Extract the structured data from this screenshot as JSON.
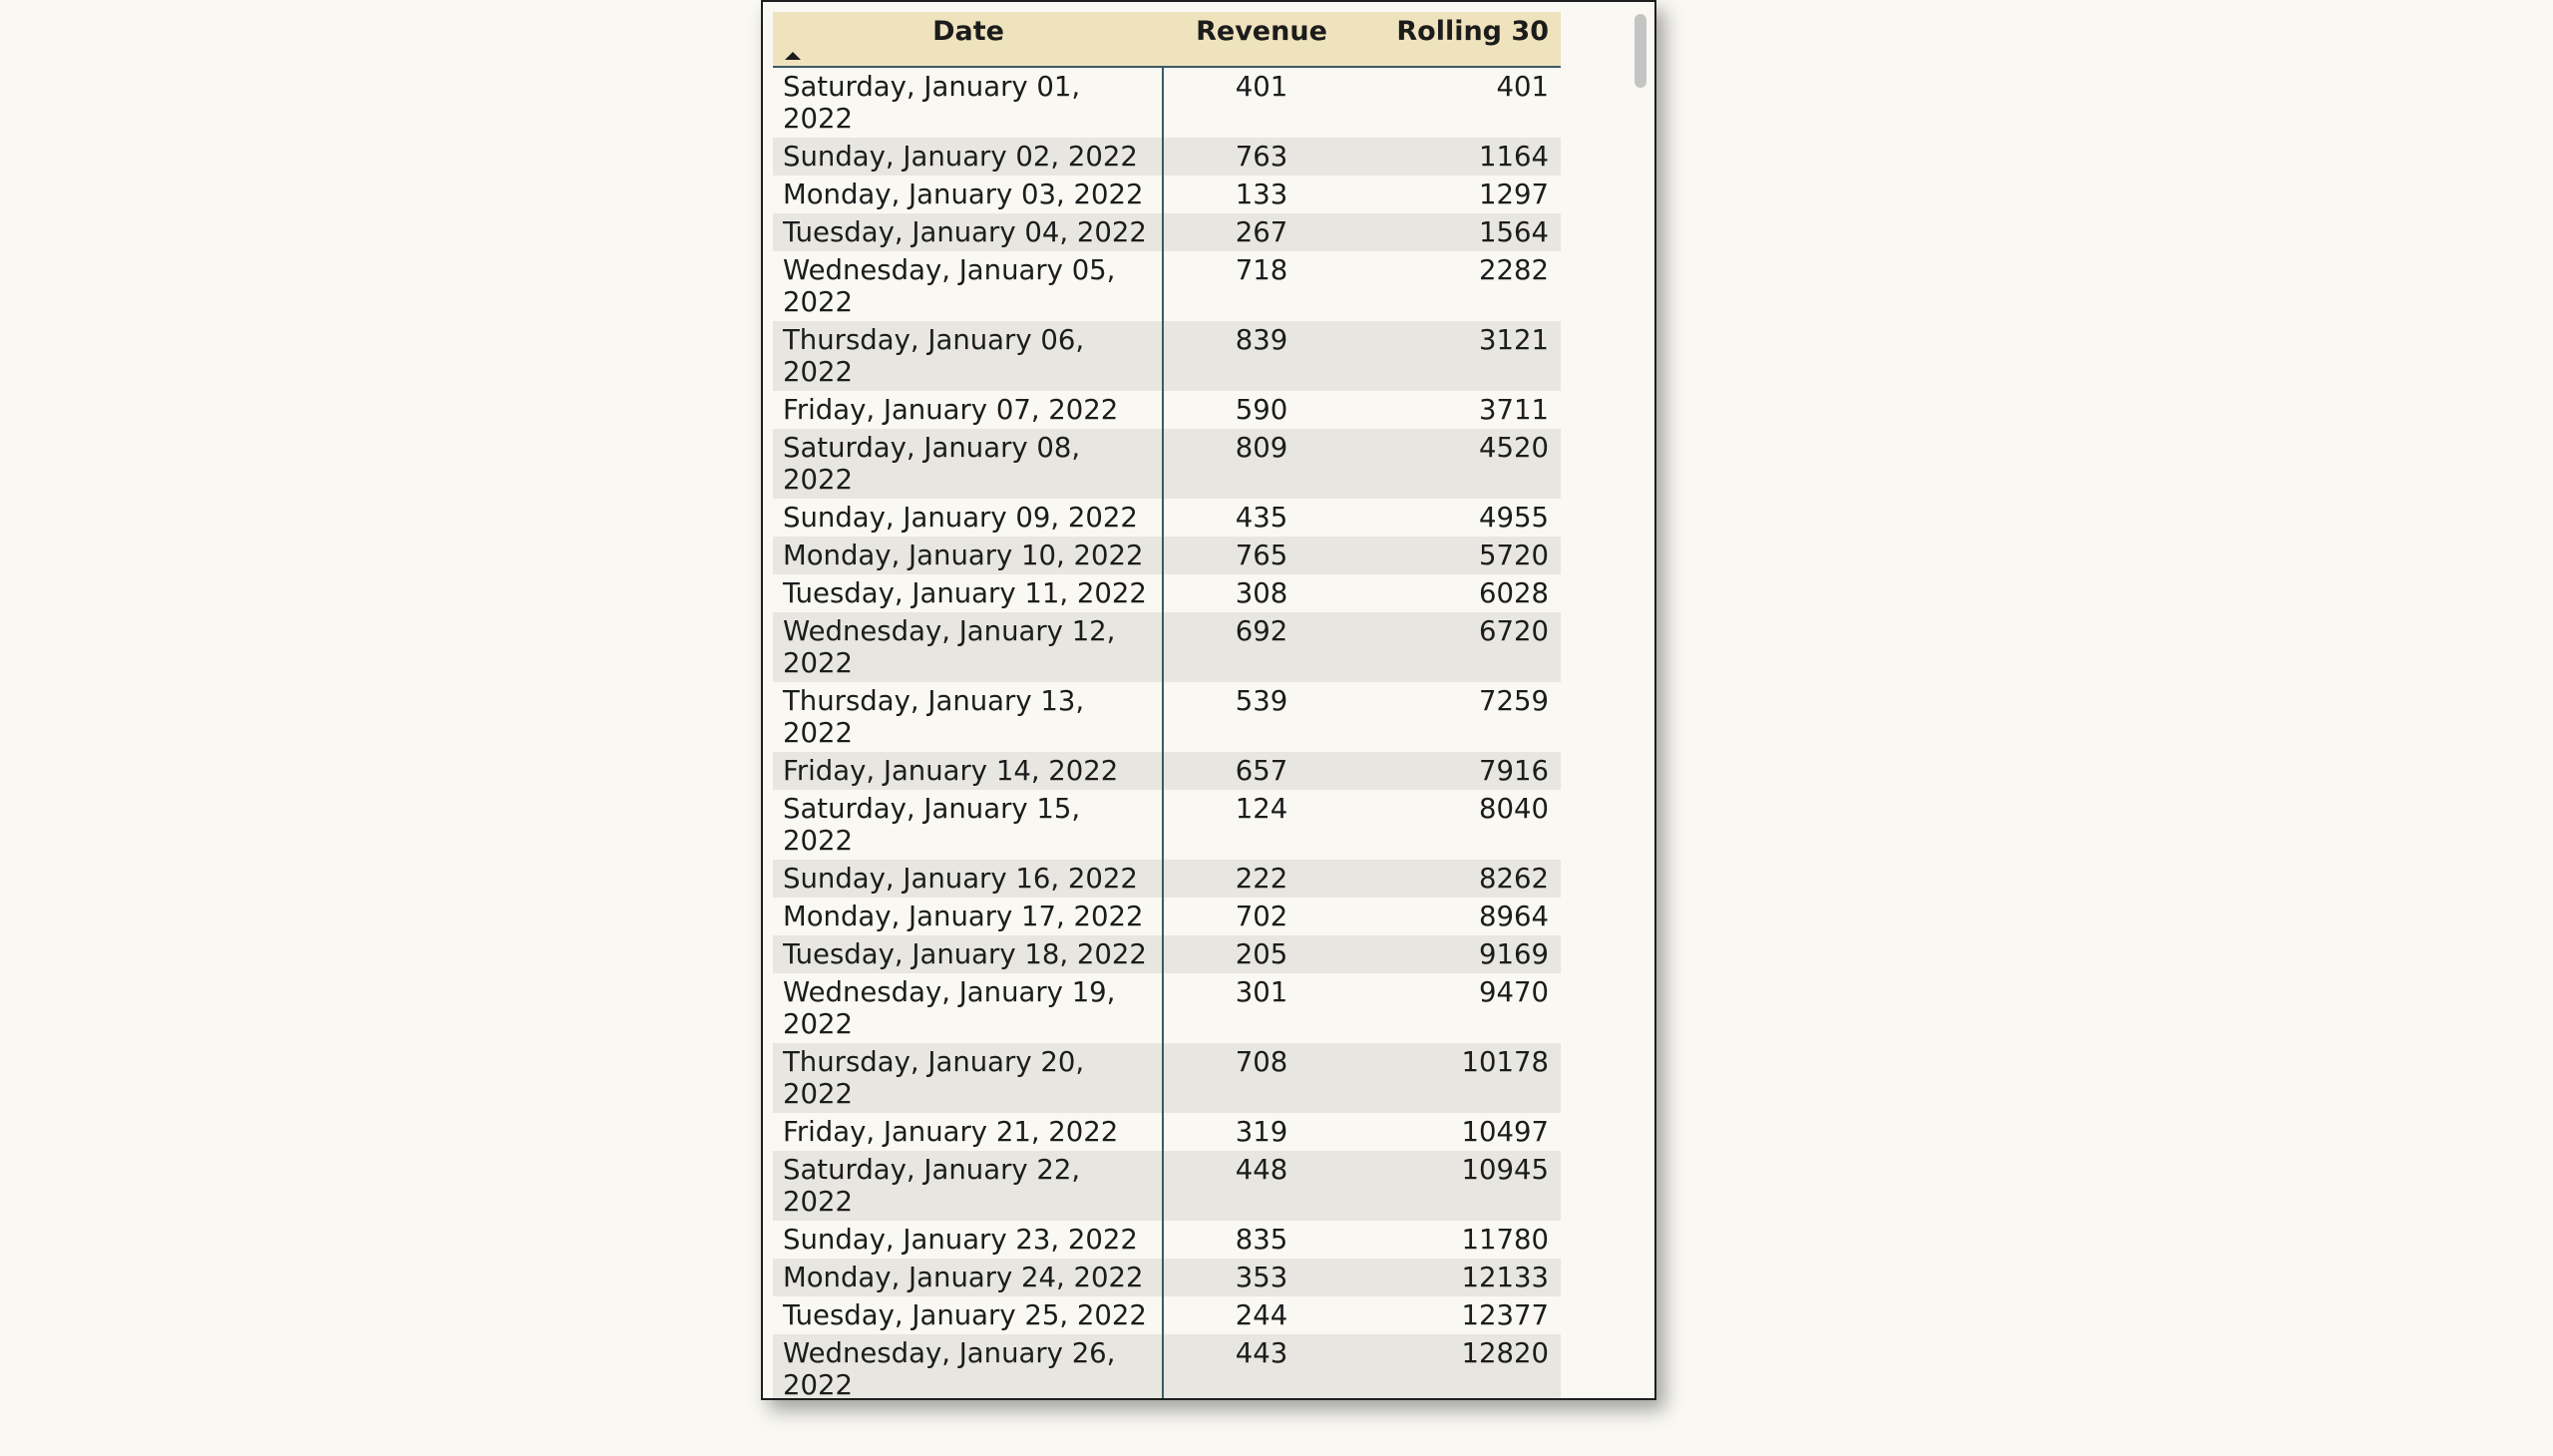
{
  "table": {
    "headers": {
      "date": "Date",
      "revenue": "Revenue",
      "rolling": "Rolling 30"
    },
    "sort_indicator": "ascending",
    "rows": [
      {
        "date": "Saturday, January 01, 2022",
        "revenue": "401",
        "rolling": "401"
      },
      {
        "date": "Sunday, January 02, 2022",
        "revenue": "763",
        "rolling": "1164"
      },
      {
        "date": "Monday, January 03, 2022",
        "revenue": "133",
        "rolling": "1297"
      },
      {
        "date": "Tuesday, January 04, 2022",
        "revenue": "267",
        "rolling": "1564"
      },
      {
        "date": "Wednesday, January 05, 2022",
        "revenue": "718",
        "rolling": "2282"
      },
      {
        "date": "Thursday, January 06, 2022",
        "revenue": "839",
        "rolling": "3121"
      },
      {
        "date": "Friday, January 07, 2022",
        "revenue": "590",
        "rolling": "3711"
      },
      {
        "date": "Saturday, January 08, 2022",
        "revenue": "809",
        "rolling": "4520"
      },
      {
        "date": "Sunday, January 09, 2022",
        "revenue": "435",
        "rolling": "4955"
      },
      {
        "date": "Monday, January 10, 2022",
        "revenue": "765",
        "rolling": "5720"
      },
      {
        "date": "Tuesday, January 11, 2022",
        "revenue": "308",
        "rolling": "6028"
      },
      {
        "date": "Wednesday, January 12, 2022",
        "revenue": "692",
        "rolling": "6720"
      },
      {
        "date": "Thursday, January 13, 2022",
        "revenue": "539",
        "rolling": "7259"
      },
      {
        "date": "Friday, January 14, 2022",
        "revenue": "657",
        "rolling": "7916"
      },
      {
        "date": "Saturday, January 15, 2022",
        "revenue": "124",
        "rolling": "8040"
      },
      {
        "date": "Sunday, January 16, 2022",
        "revenue": "222",
        "rolling": "8262"
      },
      {
        "date": "Monday, January 17, 2022",
        "revenue": "702",
        "rolling": "8964"
      },
      {
        "date": "Tuesday, January 18, 2022",
        "revenue": "205",
        "rolling": "9169"
      },
      {
        "date": "Wednesday, January 19, 2022",
        "revenue": "301",
        "rolling": "9470"
      },
      {
        "date": "Thursday, January 20, 2022",
        "revenue": "708",
        "rolling": "10178"
      },
      {
        "date": "Friday, January 21, 2022",
        "revenue": "319",
        "rolling": "10497"
      },
      {
        "date": "Saturday, January 22, 2022",
        "revenue": "448",
        "rolling": "10945"
      },
      {
        "date": "Sunday, January 23, 2022",
        "revenue": "835",
        "rolling": "11780"
      },
      {
        "date": "Monday, January 24, 2022",
        "revenue": "353",
        "rolling": "12133"
      },
      {
        "date": "Tuesday, January 25, 2022",
        "revenue": "244",
        "rolling": "12377"
      },
      {
        "date": "Wednesday, January 26, 2022",
        "revenue": "443",
        "rolling": "12820"
      }
    ]
  },
  "colors": {
    "header_bg": "#efe3be",
    "stripe_bg": "#e7e6e1",
    "divider": "#3c5a66"
  }
}
